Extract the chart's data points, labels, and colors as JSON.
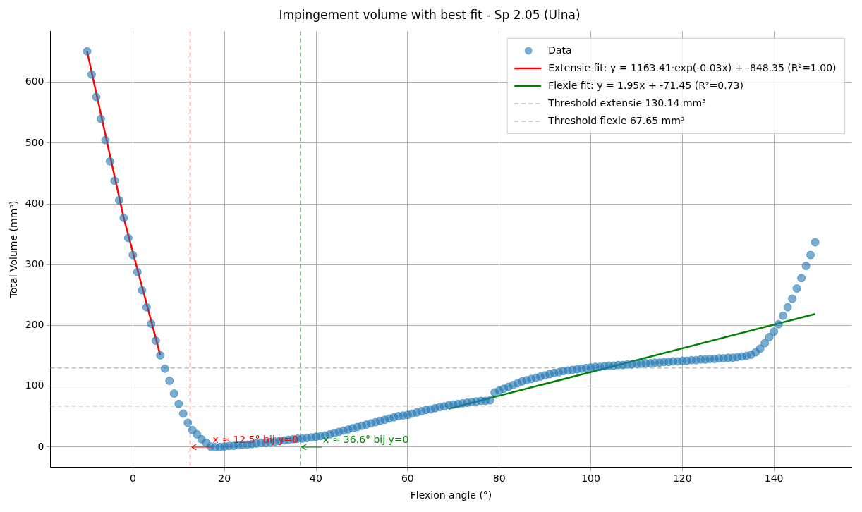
{
  "chart_data": {
    "type": "scatter",
    "title": "Impingement volume with best fit - Sp 2.05 (Ulna)",
    "xlabel": "Flexion angle (°)",
    "ylabel": "Total Volume (mm³)",
    "xlim": [
      -18,
      157
    ],
    "ylim": [
      -33,
      684
    ],
    "xticks": [
      0,
      20,
      40,
      60,
      80,
      100,
      120,
      140
    ],
    "yticks": [
      0,
      100,
      200,
      300,
      400,
      500,
      600
    ],
    "grid": true,
    "legend": "top right",
    "series": [
      {
        "name": "Data",
        "type": "scatter",
        "marker": "circle",
        "color": "#1f77b4",
        "x": [
          -10,
          -9,
          -8,
          -7,
          -6,
          -5,
          -4,
          -3,
          -2,
          -1,
          0,
          1,
          2,
          3,
          4,
          5,
          6,
          7,
          8,
          9,
          10,
          11,
          12,
          13,
          14,
          15,
          16,
          17,
          18,
          19,
          20,
          21,
          22,
          23,
          24,
          25,
          26,
          27,
          28,
          29,
          30,
          31,
          32,
          33,
          34,
          35,
          36,
          37,
          38,
          39,
          40,
          41,
          42,
          43,
          44,
          45,
          46,
          47,
          48,
          49,
          50,
          51,
          52,
          53,
          54,
          55,
          56,
          57,
          58,
          59,
          60,
          61,
          62,
          63,
          64,
          65,
          66,
          67,
          68,
          69,
          70,
          71,
          72,
          73,
          74,
          75,
          76,
          77,
          78,
          79,
          80,
          81,
          82,
          83,
          84,
          85,
          86,
          87,
          88,
          89,
          90,
          91,
          92,
          93,
          94,
          95,
          96,
          97,
          98,
          99,
          100,
          101,
          102,
          103,
          104,
          105,
          106,
          107,
          108,
          109,
          110,
          111,
          112,
          113,
          114,
          115,
          116,
          117,
          118,
          119,
          120,
          121,
          122,
          123,
          124,
          125,
          126,
          127,
          128,
          129,
          130,
          131,
          132,
          133,
          134,
          135,
          136,
          137,
          138,
          139,
          140,
          141,
          142,
          143,
          144,
          145,
          146,
          147,
          148,
          149
        ],
        "values": [
          651,
          613,
          576,
          540,
          505,
          470,
          438,
          406,
          377,
          344,
          316,
          288,
          258,
          230,
          203,
          175,
          151,
          129,
          109,
          88,
          71,
          55,
          40,
          28,
          21,
          13,
          7,
          1,
          0,
          0,
          1,
          2,
          2,
          3,
          4,
          4,
          5,
          6,
          7,
          7,
          8,
          9,
          10,
          11,
          12,
          13,
          14,
          14,
          15,
          16,
          17,
          18,
          19,
          21,
          23,
          25,
          27,
          29,
          31,
          33,
          35,
          37,
          39,
          41,
          43,
          45,
          47,
          49,
          51,
          52,
          53,
          55,
          57,
          59,
          61,
          62,
          64,
          66,
          67,
          69,
          70,
          71,
          72,
          73,
          74,
          75,
          76,
          76,
          77,
          90,
          93,
          96,
          99,
          102,
          105,
          108,
          110,
          112,
          114,
          116,
          118,
          120,
          122,
          123,
          125,
          126,
          127,
          128,
          129,
          130,
          131,
          132,
          132,
          133,
          134,
          134,
          135,
          135,
          136,
          136,
          137,
          137,
          138,
          138,
          139,
          139,
          140,
          140,
          141,
          141,
          142,
          142,
          143,
          143,
          144,
          144,
          145,
          145,
          146,
          146,
          147,
          147,
          148,
          149,
          150,
          152,
          156,
          162,
          171,
          181,
          190,
          202,
          216,
          230,
          244,
          261,
          278,
          298,
          316,
          337
        ]
      },
      {
        "name": "Extensie fit: y = 1163.41·exp(-0.03x) + -848.35 (R²=1.00)",
        "type": "line",
        "color": "#ff0000",
        "x": [
          -10,
          -2,
          6
        ],
        "values": [
          651,
          377,
          151
        ]
      },
      {
        "name": "Flexie fit: y = 1.95x + -71.45 (R²=0.73)",
        "type": "line",
        "color": "#008000",
        "x": [
          69,
          149
        ],
        "values": [
          63,
          219
        ]
      }
    ],
    "ref_lines": [
      {
        "axis": "y",
        "value": 130.14,
        "label": "Threshold extensie 130.14 mm³",
        "color": "#bfbfbf",
        "line_style": "dashed"
      },
      {
        "axis": "y",
        "value": 67.65,
        "label": "Threshold flexie 67.65 mm³",
        "color": "#bfbfbf",
        "line_style": "dashed"
      },
      {
        "axis": "x",
        "value": 12.5,
        "color": "#ff6666",
        "line_style": "dashed"
      },
      {
        "axis": "x",
        "value": 36.6,
        "color": "#66b366",
        "line_style": "dashed"
      }
    ],
    "annotations": [
      {
        "text": "x ≈ 12.5° bij y=0",
        "x": 12.5,
        "y": 0
      },
      {
        "text": "x ≈ 36.6° bij y=0",
        "x": 36.6,
        "y": 0
      }
    ]
  }
}
